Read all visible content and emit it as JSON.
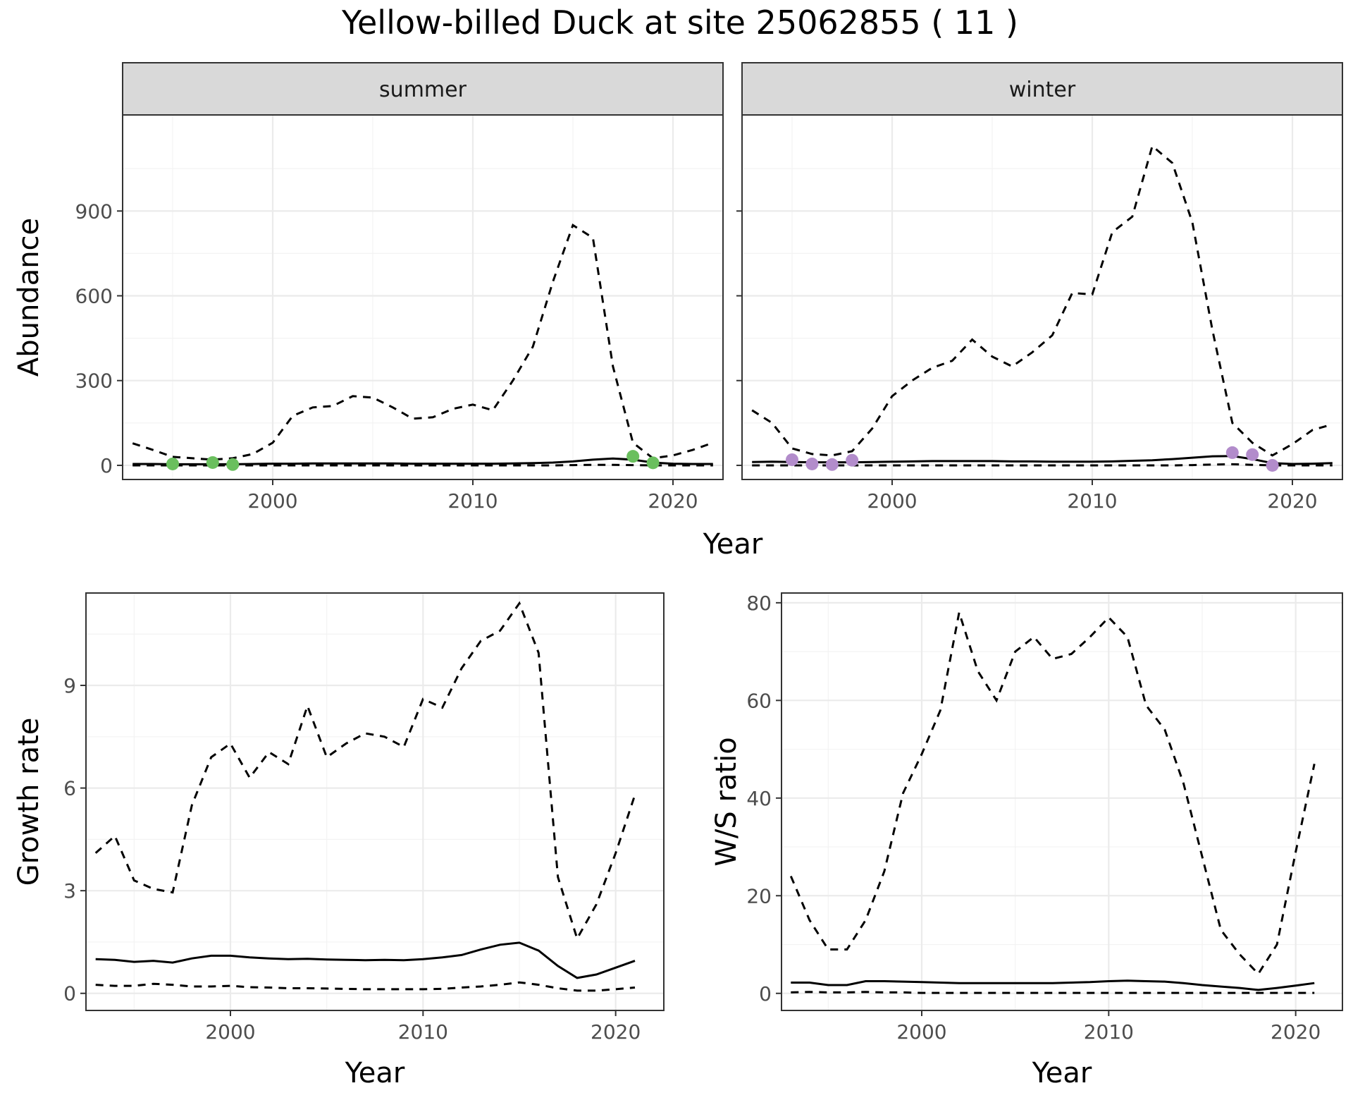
{
  "title": "Yellow-billed Duck at site 25062855 ( 11 )",
  "top_xlabel": "Year",
  "colors": {
    "summer": "#6abf5e",
    "winter": "#b28ccb",
    "line": "#000000",
    "strip": "#d9d9d9"
  },
  "chart_data": [
    {
      "id": "abundance-summer",
      "type": "line",
      "facet": "summer",
      "ylabel": "Abundance",
      "xlabel": "",
      "xlim": [
        1992.5,
        2022.5
      ],
      "ylim": [
        -50,
        1240
      ],
      "xticks": [
        2000,
        2010,
        2020
      ],
      "yticks": [
        0,
        300,
        600,
        900
      ],
      "ytick_labels_shown": true,
      "grid": true,
      "x": [
        1993,
        1994,
        1995,
        1996,
        1997,
        1998,
        1999,
        2000,
        2001,
        2002,
        2003,
        2004,
        2005,
        2006,
        2007,
        2008,
        2009,
        2010,
        2011,
        2012,
        2013,
        2014,
        2015,
        2016,
        2017,
        2018,
        2019,
        2020,
        2021,
        2022
      ],
      "series": [
        {
          "role": "mean",
          "style": "solid",
          "values": [
            5,
            5,
            4,
            4,
            4,
            4,
            5,
            6,
            6,
            7,
            7,
            7,
            7,
            7,
            6,
            6,
            6,
            6,
            6,
            7,
            8,
            10,
            14,
            20,
            24,
            20,
            10,
            6,
            5,
            5
          ]
        },
        {
          "role": "upper",
          "style": "dashed",
          "values": [
            78,
            55,
            30,
            25,
            20,
            25,
            40,
            80,
            175,
            205,
            210,
            245,
            240,
            205,
            165,
            170,
            200,
            215,
            195,
            300,
            420,
            650,
            850,
            805,
            350,
            80,
            25,
            35,
            55,
            80
          ]
        },
        {
          "role": "lower",
          "style": "dashed",
          "values": [
            0,
            0,
            0,
            0,
            0,
            0,
            0,
            0,
            0,
            0,
            0,
            0,
            0,
            0,
            0,
            0,
            0,
            0,
            0,
            0,
            0,
            0,
            1,
            2,
            2,
            1,
            0,
            0,
            0,
            0
          ]
        }
      ],
      "points": {
        "x": [
          1995,
          1997,
          1998,
          2018,
          2019
        ],
        "y": [
          5,
          10,
          3,
          32,
          9
        ]
      }
    },
    {
      "id": "abundance-winter",
      "type": "line",
      "facet": "winter",
      "ylabel": "",
      "xlabel": "",
      "xlim": [
        1992.5,
        2022.5
      ],
      "ylim": [
        -50,
        1240
      ],
      "xticks": [
        2000,
        2010,
        2020
      ],
      "yticks": [
        0,
        300,
        600,
        900
      ],
      "ytick_labels_shown": false,
      "grid": true,
      "x": [
        1993,
        1994,
        1995,
        1996,
        1997,
        1998,
        1999,
        2000,
        2001,
        2002,
        2003,
        2004,
        2005,
        2006,
        2007,
        2008,
        2009,
        2010,
        2011,
        2012,
        2013,
        2014,
        2015,
        2016,
        2017,
        2018,
        2019,
        2020,
        2021,
        2022
      ],
      "series": [
        {
          "role": "mean",
          "style": "solid",
          "values": [
            12,
            13,
            12,
            11,
            11,
            11,
            12,
            13,
            14,
            15,
            15,
            15,
            15,
            14,
            14,
            13,
            13,
            13,
            14,
            16,
            18,
            22,
            27,
            32,
            33,
            22,
            8,
            5,
            6,
            8
          ]
        },
        {
          "role": "upper",
          "style": "dashed",
          "values": [
            195,
            150,
            60,
            40,
            35,
            50,
            130,
            245,
            300,
            345,
            370,
            445,
            385,
            350,
            400,
            460,
            610,
            605,
            825,
            880,
            1130,
            1070,
            860,
            480,
            150,
            80,
            35,
            75,
            125,
            145
          ]
        },
        {
          "role": "lower",
          "style": "dashed",
          "values": [
            0,
            0,
            0,
            0,
            0,
            0,
            0,
            0,
            0,
            0,
            0,
            0,
            0,
            0,
            0,
            0,
            0,
            0,
            0,
            0,
            0,
            0,
            1,
            3,
            4,
            2,
            0,
            0,
            0,
            0
          ]
        }
      ],
      "points": {
        "x": [
          1995,
          1996,
          1997,
          1998,
          2017,
          2018,
          2019
        ],
        "y": [
          20,
          5,
          3,
          18,
          45,
          38,
          0
        ]
      }
    },
    {
      "id": "growth-rate",
      "type": "line",
      "ylabel": "Growth rate",
      "xlabel": "Year",
      "xlim": [
        1992.5,
        2022.5
      ],
      "ylim": [
        -0.5,
        11.7
      ],
      "xticks": [
        2000,
        2010,
        2020
      ],
      "yticks": [
        0,
        3,
        6,
        9
      ],
      "ytick_labels_shown": true,
      "grid": true,
      "x": [
        1993,
        1994,
        1995,
        1996,
        1997,
        1998,
        1999,
        2000,
        2001,
        2002,
        2003,
        2004,
        2005,
        2006,
        2007,
        2008,
        2009,
        2010,
        2011,
        2012,
        2013,
        2014,
        2015,
        2016,
        2017,
        2018,
        2019,
        2020,
        2021
      ],
      "series": [
        {
          "role": "mean",
          "style": "solid",
          "values": [
            1.0,
            0.98,
            0.92,
            0.95,
            0.9,
            1.02,
            1.1,
            1.1,
            1.05,
            1.02,
            1.0,
            1.01,
            0.99,
            0.98,
            0.97,
            0.98,
            0.97,
            1.0,
            1.05,
            1.12,
            1.28,
            1.42,
            1.48,
            1.25,
            0.8,
            0.45,
            0.55,
            0.75,
            0.95
          ]
        },
        {
          "role": "upper",
          "style": "dashed",
          "values": [
            4.1,
            4.6,
            3.3,
            3.05,
            2.95,
            5.5,
            6.9,
            7.3,
            6.3,
            7.05,
            6.7,
            8.4,
            6.9,
            7.3,
            7.6,
            7.5,
            7.2,
            8.6,
            8.35,
            9.5,
            10.3,
            10.6,
            11.4,
            9.95,
            3.4,
            1.6,
            2.6,
            4.1,
            5.8
          ]
        },
        {
          "role": "lower",
          "style": "dashed",
          "values": [
            0.25,
            0.22,
            0.22,
            0.28,
            0.25,
            0.2,
            0.2,
            0.22,
            0.18,
            0.17,
            0.15,
            0.15,
            0.14,
            0.13,
            0.12,
            0.12,
            0.12,
            0.12,
            0.13,
            0.17,
            0.2,
            0.25,
            0.32,
            0.25,
            0.15,
            0.08,
            0.08,
            0.12,
            0.17
          ]
        }
      ]
    },
    {
      "id": "ws-ratio",
      "type": "line",
      "ylabel": "W/S ratio",
      "xlabel": "Year",
      "xlim": [
        1992.5,
        2022.5
      ],
      "ylim": [
        -3.5,
        82
      ],
      "xticks": [
        2000,
        2010,
        2020
      ],
      "yticks": [
        0,
        20,
        40,
        60,
        80
      ],
      "ytick_labels_shown": true,
      "grid": true,
      "x": [
        1993,
        1994,
        1995,
        1996,
        1997,
        1998,
        1999,
        2000,
        2001,
        2002,
        2003,
        2004,
        2005,
        2006,
        2007,
        2008,
        2009,
        2010,
        2011,
        2012,
        2013,
        2014,
        2015,
        2016,
        2017,
        2018,
        2019,
        2020,
        2021
      ],
      "series": [
        {
          "role": "mean",
          "style": "solid",
          "values": [
            2.2,
            2.2,
            1.7,
            1.7,
            2.5,
            2.5,
            2.4,
            2.3,
            2.2,
            2.1,
            2.1,
            2.1,
            2.1,
            2.1,
            2.1,
            2.2,
            2.3,
            2.5,
            2.6,
            2.5,
            2.4,
            2.1,
            1.7,
            1.4,
            1.1,
            0.7,
            1.1,
            1.6,
            2.1
          ]
        },
        {
          "role": "upper",
          "style": "dashed",
          "values": [
            24,
            15,
            9,
            9,
            15,
            25,
            41,
            49,
            58,
            78,
            66,
            60,
            70,
            73,
            68.5,
            69.5,
            73,
            77,
            73,
            59,
            54,
            43,
            28,
            13,
            8,
            4,
            10,
            29,
            47
          ]
        },
        {
          "role": "lower",
          "style": "dashed",
          "values": [
            0.2,
            0.3,
            0.2,
            0.2,
            0.3,
            0.2,
            0.2,
            0.1,
            0.1,
            0.1,
            0.1,
            0.1,
            0.1,
            0.1,
            0.1,
            0.1,
            0.1,
            0.1,
            0.1,
            0.1,
            0.1,
            0.1,
            0.1,
            0.1,
            0.1,
            0.1,
            0.1,
            0.1,
            0.1
          ]
        }
      ]
    }
  ]
}
